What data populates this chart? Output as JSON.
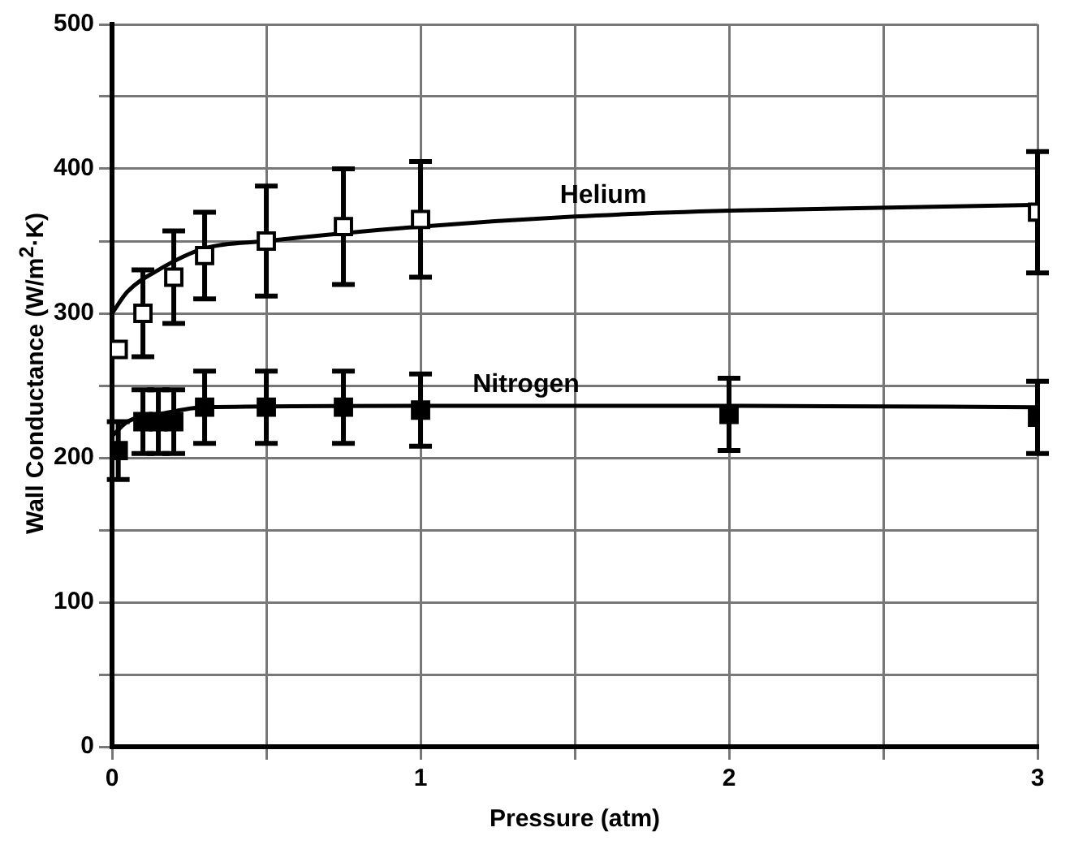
{
  "chart_data": {
    "type": "scatter",
    "xlabel": "Pressure (atm)",
    "ylabel": "Wall Conductance (W/m$^{2}$·K)",
    "xlim": [
      0,
      3
    ],
    "ylim": [
      0,
      500
    ],
    "xticks": [
      0,
      {
        "value": 0.5,
        "label": null
      },
      1,
      {
        "value": 1.5,
        "label": null
      },
      2,
      {
        "value": 2.5,
        "label": null
      },
      3
    ],
    "yticks": [
      0,
      {
        "value": 50,
        "label": null
      },
      100,
      {
        "value": 150,
        "label": null
      },
      200,
      {
        "value": 250,
        "label": null
      },
      300,
      {
        "value": 350,
        "label": null
      },
      400,
      {
        "value": 450,
        "label": null
      },
      500
    ],
    "grid": true,
    "legend": false,
    "marker": "square",
    "series": [
      {
        "color": "#000000",
        "x": [
          0.02,
          0.1,
          0.2,
          0.3,
          0.5,
          0.75,
          1.0,
          3.0
        ],
        "values": [
          275,
          300,
          325,
          340,
          350,
          360,
          365,
          370
        ],
        "errors": [
          null,
          30,
          32,
          30,
          38,
          40,
          40,
          42
        ]
      },
      {
        "color": "#000000",
        "x": [
          0.02,
          0.1,
          0.15,
          0.2,
          0.3,
          0.5,
          0.75,
          1.0,
          2.0,
          3.0
        ],
        "values": [
          205,
          225,
          225,
          225,
          235,
          235,
          235,
          233,
          230,
          228
        ],
        "errors": [
          20,
          22,
          22,
          22,
          25,
          25,
          25,
          25,
          25,
          25
        ]
      },
      {
        "type": "line",
        "name": "Helium",
        "color": "#000000",
        "marker": "none",
        "x": [
          0,
          0.05,
          0.15,
          0.3,
          0.5,
          1,
          1.5,
          2,
          3
        ],
        "values": [
          300,
          315,
          330,
          345,
          350,
          360,
          367,
          371,
          375
        ]
      },
      {
        "type": "line",
        "name": "Nitrogen",
        "color": "#000000",
        "marker": "none",
        "x": [
          0,
          0.05,
          0.15,
          0.3,
          1,
          2,
          3
        ],
        "values": [
          215,
          225,
          230,
          235,
          236,
          236,
          235
        ]
      }
    ]
  }
}
